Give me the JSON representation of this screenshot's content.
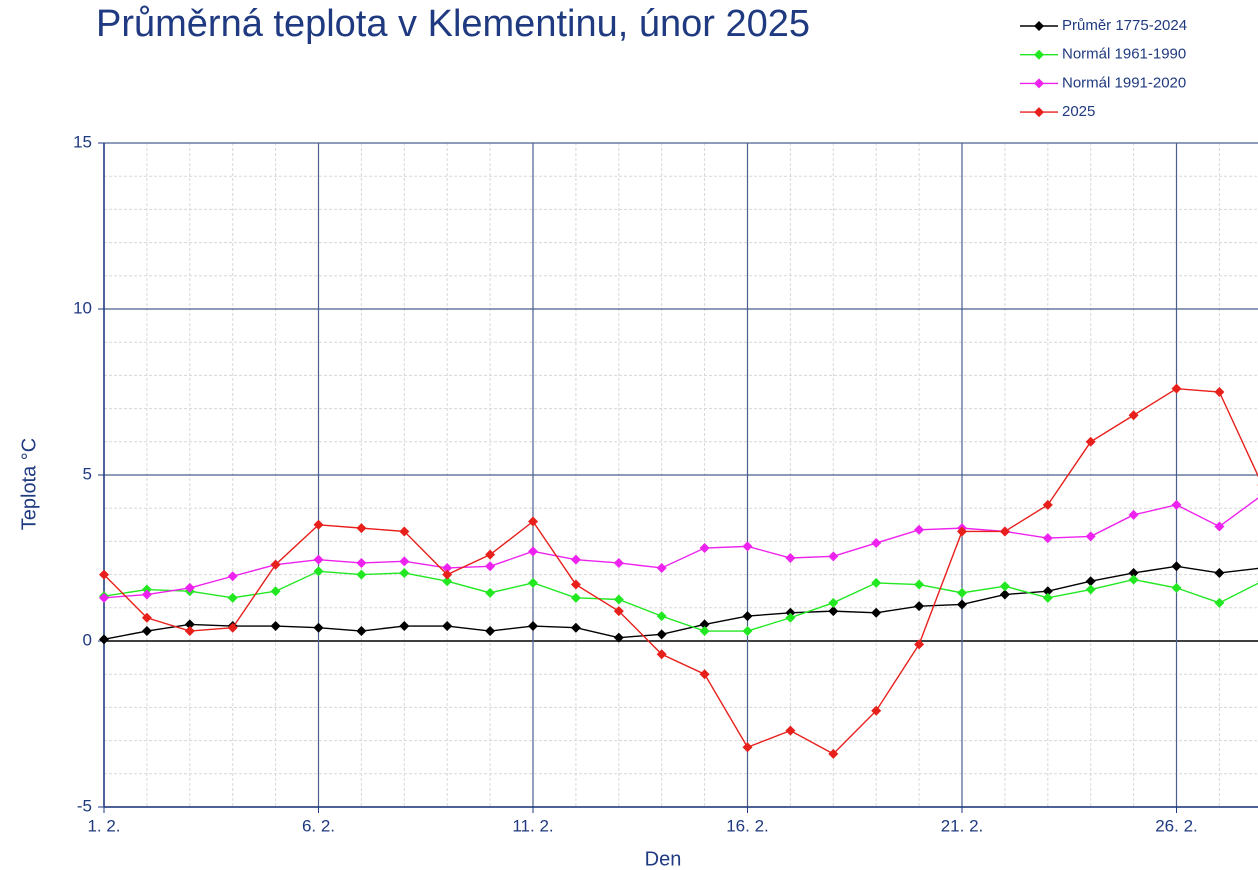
{
  "chart_data": {
    "type": "line",
    "title": "Průměrná teplota v Klementinu, únor 2025",
    "xlabel": "Den",
    "ylabel": "Teplota  °C",
    "x": [
      1,
      2,
      3,
      4,
      5,
      6,
      7,
      8,
      9,
      10,
      11,
      12,
      13,
      14,
      15,
      16,
      17,
      18,
      19,
      20,
      21,
      22,
      23,
      24,
      25,
      26,
      27,
      28
    ],
    "xlim": [
      1,
      28
    ],
    "xticks": [
      {
        "value": 1,
        "label": "1. 2."
      },
      {
        "value": 6,
        "label": "6. 2."
      },
      {
        "value": 11,
        "label": "11. 2."
      },
      {
        "value": 16,
        "label": "16. 2."
      },
      {
        "value": 21,
        "label": "21. 2."
      },
      {
        "value": 26,
        "label": "26. 2."
      }
    ],
    "ylim": [
      -5,
      15
    ],
    "yticks": [
      -5,
      0,
      5,
      10,
      15
    ],
    "grid": true,
    "minor_grid": true,
    "legend": "top-right",
    "series": [
      {
        "name": "Průměr 1775-2024",
        "color": "#000000",
        "values": [
          0.05,
          0.3,
          0.5,
          0.45,
          0.45,
          0.4,
          0.3,
          0.45,
          0.45,
          0.3,
          0.45,
          0.4,
          0.1,
          0.2,
          0.5,
          0.75,
          0.85,
          0.9,
          0.85,
          1.05,
          1.1,
          1.4,
          1.5,
          1.8,
          2.05,
          2.25,
          2.05,
          2.2
        ]
      },
      {
        "name": "Normál 1961-1990",
        "color": "#22e822",
        "values": [
          1.35,
          1.55,
          1.5,
          1.3,
          1.5,
          2.1,
          2.0,
          2.05,
          1.8,
          1.45,
          1.75,
          1.3,
          1.25,
          0.75,
          0.3,
          0.3,
          0.7,
          1.15,
          1.75,
          1.7,
          1.45,
          1.65,
          1.3,
          1.55,
          1.85,
          1.6,
          1.15,
          1.8
        ]
      },
      {
        "name": "Normál 1991-2020",
        "color": "#ee22ee",
        "values": [
          1.3,
          1.4,
          1.6,
          1.95,
          2.3,
          2.45,
          2.35,
          2.4,
          2.2,
          2.25,
          2.7,
          2.45,
          2.35,
          2.2,
          2.8,
          2.85,
          2.5,
          2.55,
          2.95,
          3.35,
          3.4,
          3.3,
          3.1,
          3.15,
          3.8,
          4.1,
          3.45,
          4.4
        ]
      },
      {
        "name": "2025",
        "color": "#e8201c",
        "values": [
          2.0,
          0.7,
          0.3,
          0.4,
          2.3,
          3.5,
          3.4,
          3.3,
          2.0,
          2.6,
          3.6,
          1.7,
          0.9,
          -0.4,
          -1.0,
          -3.2,
          -2.7,
          -3.4,
          -2.1,
          -0.1,
          3.3,
          3.3,
          4.1,
          6.0,
          6.8,
          7.6,
          7.5,
          4.7
        ]
      }
    ]
  }
}
